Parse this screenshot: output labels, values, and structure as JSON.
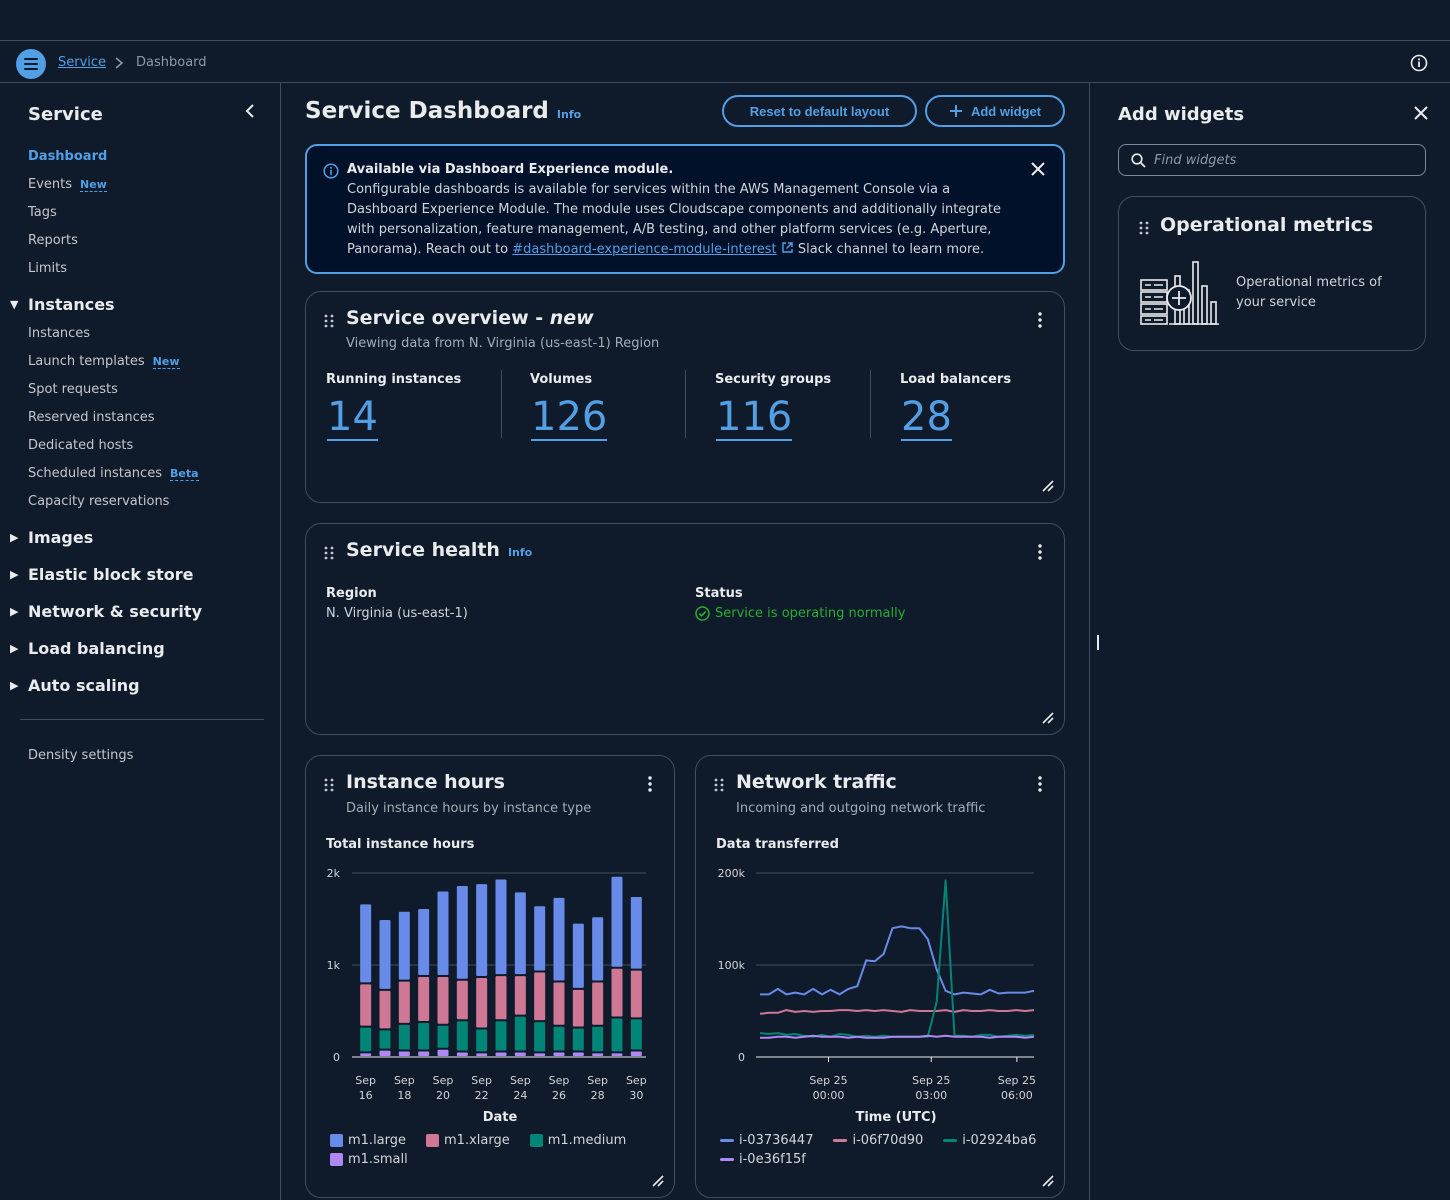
{
  "breadcrumb": {
    "service": "Service",
    "current": "Dashboard"
  },
  "sidebar": {
    "title": "Service",
    "top_items": [
      {
        "label": "Dashboard",
        "badge": ""
      },
      {
        "label": "Events",
        "badge": "New"
      },
      {
        "label": "Tags",
        "badge": ""
      },
      {
        "label": "Reports",
        "badge": ""
      },
      {
        "label": "Limits",
        "badge": ""
      }
    ],
    "instances_group": "Instances",
    "instances_items": [
      {
        "label": "Instances",
        "badge": ""
      },
      {
        "label": "Launch templates",
        "badge": "New"
      },
      {
        "label": "Spot requests",
        "badge": ""
      },
      {
        "label": "Reserved instances",
        "badge": ""
      },
      {
        "label": "Dedicated hosts",
        "badge": ""
      },
      {
        "label": "Scheduled instances",
        "badge": "Beta"
      },
      {
        "label": "Capacity reservations",
        "badge": ""
      }
    ],
    "groups": [
      "Images",
      "Elastic block store",
      "Network & security",
      "Load balancing",
      "Auto scaling"
    ],
    "density": "Density settings"
  },
  "header": {
    "title": "Service Dashboard",
    "info": "Info",
    "reset_label": "Reset to default layout",
    "add_label": "Add widget"
  },
  "flash": {
    "title": "Available via Dashboard Experience module.",
    "body": "Configurable dashboards is available for services within the AWS Management Console via a Dashboard Experience Module. The module uses Cloudscape components and additionally integrate with personalization, feature management, A/B testing, and other platform services (e.g. Aperture, Panorama). Reach out to",
    "link": "#dashboard-experience-module-interest",
    "tail": "Slack channel to learn more."
  },
  "overview": {
    "title": "Service overview - ",
    "title_em": "new",
    "subtitle": "Viewing data from N. Virginia (us-east-1) Region",
    "metrics": [
      {
        "label": "Running instances",
        "value": "14"
      },
      {
        "label": "Volumes",
        "value": "126"
      },
      {
        "label": "Security groups",
        "value": "116"
      },
      {
        "label": "Load balancers",
        "value": "28"
      }
    ]
  },
  "health": {
    "title": "Service health",
    "info": "Info",
    "region_label": "Region",
    "region_value": "N. Virginia (us-east-1)",
    "status_label": "Status",
    "status_value": "Service is operating normally"
  },
  "instance_hours": {
    "title": "Instance hours",
    "subtitle": "Daily instance hours by instance type",
    "chart_label": "Total instance hours",
    "xlabel": "Date",
    "legend": [
      "m1.large",
      "m1.xlarge",
      "m1.medium",
      "m1.small"
    ]
  },
  "network": {
    "title": "Network traffic",
    "subtitle": "Incoming and outgoing network traffic",
    "chart_label": "Data transferred",
    "xlabel": "Time (UTC)",
    "legend": [
      "i-03736447",
      "i-06f70d90",
      "i-02924ba6",
      "i-0e36f15f"
    ]
  },
  "chart_data": [
    {
      "type": "bar",
      "stacked": true,
      "title": "Total instance hours",
      "xlabel": "Date",
      "ylabel": "",
      "ylim": [
        0,
        2000
      ],
      "y_ticks": [
        "0",
        "1k",
        "2k"
      ],
      "x_ticks": [
        [
          "Sep",
          "16"
        ],
        [
          "Sep",
          "18"
        ],
        [
          "Sep",
          "20"
        ],
        [
          "Sep",
          "22"
        ],
        [
          "Sep",
          "24"
        ],
        [
          "Sep",
          "26"
        ],
        [
          "Sep",
          "28"
        ],
        [
          "Sep",
          "30"
        ]
      ],
      "categories": [
        "Sep 16",
        "Sep 17",
        "Sep 18",
        "Sep 19",
        "Sep 20",
        "Sep 21",
        "Sep 22",
        "Sep 23",
        "Sep 24",
        "Sep 25",
        "Sep 26",
        "Sep 27",
        "Sep 28",
        "Sep 29",
        "Sep 30"
      ],
      "series": [
        {
          "name": "m1.small",
          "color": "#b088f5",
          "values": [
            50,
            80,
            70,
            70,
            90,
            60,
            50,
            60,
            60,
            50,
            60,
            60,
            50,
            50,
            70
          ]
        },
        {
          "name": "m1.medium",
          "color": "#008577",
          "values": [
            280,
            220,
            290,
            310,
            260,
            340,
            260,
            340,
            390,
            340,
            280,
            260,
            290,
            380,
            350
          ]
        },
        {
          "name": "m1.xlarge",
          "color": "#ce7896",
          "values": [
            470,
            430,
            470,
            500,
            530,
            440,
            560,
            490,
            440,
            540,
            480,
            420,
            480,
            540,
            530
          ]
        },
        {
          "name": "m1.large",
          "color": "#688ae8",
          "values": [
            870,
            770,
            760,
            740,
            930,
            1030,
            1020,
            1050,
            910,
            720,
            920,
            720,
            710,
            1000,
            800
          ]
        }
      ]
    },
    {
      "type": "line",
      "title": "Data transferred",
      "xlabel": "Time (UTC)",
      "ylabel": "",
      "ylim": [
        0,
        200000
      ],
      "y_ticks": [
        "0",
        "100k",
        "200k"
      ],
      "x_ticks": [
        [
          "Sep 25",
          "00:00"
        ],
        [
          "Sep 25",
          "03:00"
        ],
        [
          "Sep 25",
          "06:00"
        ]
      ],
      "x_tick_hours": [
        0,
        3,
        5.5
      ],
      "x_range": [
        -2,
        6
      ],
      "x_hours": [
        -2.0,
        -1.74,
        -1.48,
        -1.23,
        -0.97,
        -0.71,
        -0.45,
        -0.19,
        0.06,
        0.32,
        0.58,
        0.84,
        1.1,
        1.35,
        1.61,
        1.87,
        2.13,
        2.39,
        2.65,
        2.9,
        3.16,
        3.42,
        3.68,
        3.94,
        4.19,
        4.45,
        4.71,
        4.97,
        5.23,
        5.48,
        5.74,
        6.0
      ],
      "series": [
        {
          "name": "i-03736447",
          "color": "#688ae8",
          "values": [
            68000,
            68000,
            74000,
            68000,
            70000,
            68000,
            74000,
            68000,
            73000,
            68000,
            74000,
            77000,
            105000,
            104000,
            112000,
            140000,
            142000,
            140000,
            140000,
            128000,
            95000,
            72000,
            68000,
            70000,
            69000,
            68000,
            73000,
            69000,
            70000,
            70000,
            70000,
            72000
          ]
        },
        {
          "name": "i-06f70d90",
          "color": "#ce7896",
          "values": [
            47000,
            48000,
            48000,
            51000,
            49000,
            50000,
            49000,
            50000,
            50000,
            51000,
            51000,
            50000,
            51000,
            50000,
            51000,
            50000,
            49000,
            51000,
            50000,
            50000,
            50000,
            51000,
            49000,
            51000,
            50000,
            50000,
            51000,
            50000,
            50000,
            51000,
            50000,
            51000
          ]
        },
        {
          "name": "i-02924ba6",
          "color": "#008577",
          "values": [
            26000,
            25000,
            26000,
            24000,
            25000,
            23000,
            22000,
            24000,
            22000,
            25000,
            24000,
            22000,
            23000,
            22000,
            23000,
            22000,
            22000,
            22000,
            22000,
            22000,
            60000,
            192000,
            23000,
            23000,
            22000,
            24000,
            24000,
            22000,
            23000,
            24000,
            23000,
            24000
          ]
        },
        {
          "name": "i-0e36f15f",
          "color": "#b088f5",
          "values": [
            21000,
            21000,
            22000,
            22000,
            21000,
            22000,
            23000,
            22000,
            22000,
            22000,
            21000,
            22000,
            21000,
            21000,
            21000,
            22000,
            22000,
            22000,
            22000,
            23000,
            22000,
            23000,
            22000,
            22000,
            22000,
            22000,
            21000,
            22000,
            22000,
            22000,
            21000,
            22000
          ]
        }
      ]
    }
  ],
  "panel": {
    "title": "Add widgets",
    "search_placeholder": "Find widgets",
    "card_title": "Operational metrics",
    "card_desc": "Operational metrics of your service"
  }
}
